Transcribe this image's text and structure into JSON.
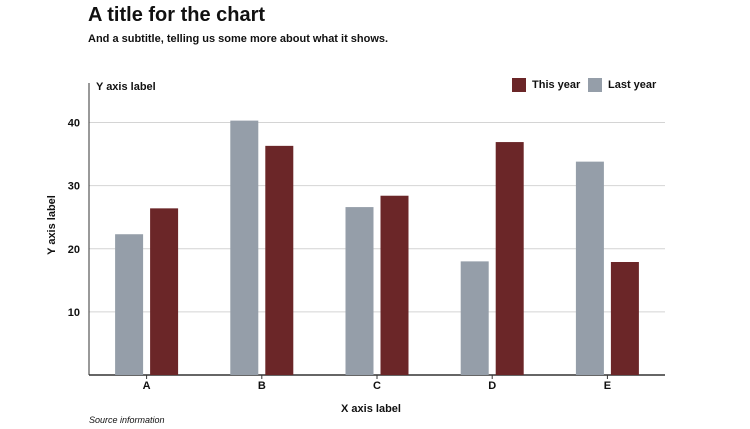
{
  "chart_data": {
    "type": "bar",
    "title": "A title for the chart",
    "subtitle": "And a subtitle, telling us some more about what it shows.",
    "xlabel": "X axis label",
    "ylabel": "Y axis label",
    "ylabel_top": "Y axis label",
    "source": "Source information",
    "categories": [
      "A",
      "B",
      "C",
      "D",
      "E"
    ],
    "series": [
      {
        "name": "Last year",
        "color": "#959ea9",
        "values": [
          22.3,
          40.3,
          26.6,
          18.0,
          33.8
        ]
      },
      {
        "name": "This year",
        "color": "#6b2628",
        "values": [
          26.4,
          36.3,
          28.4,
          36.9,
          17.9
        ]
      }
    ],
    "legend_order": [
      "This year",
      "Last year"
    ],
    "yticks": [
      10,
      20,
      30,
      40
    ],
    "ylim": [
      0,
      45
    ],
    "grid": true,
    "legend_position": "top-right"
  }
}
